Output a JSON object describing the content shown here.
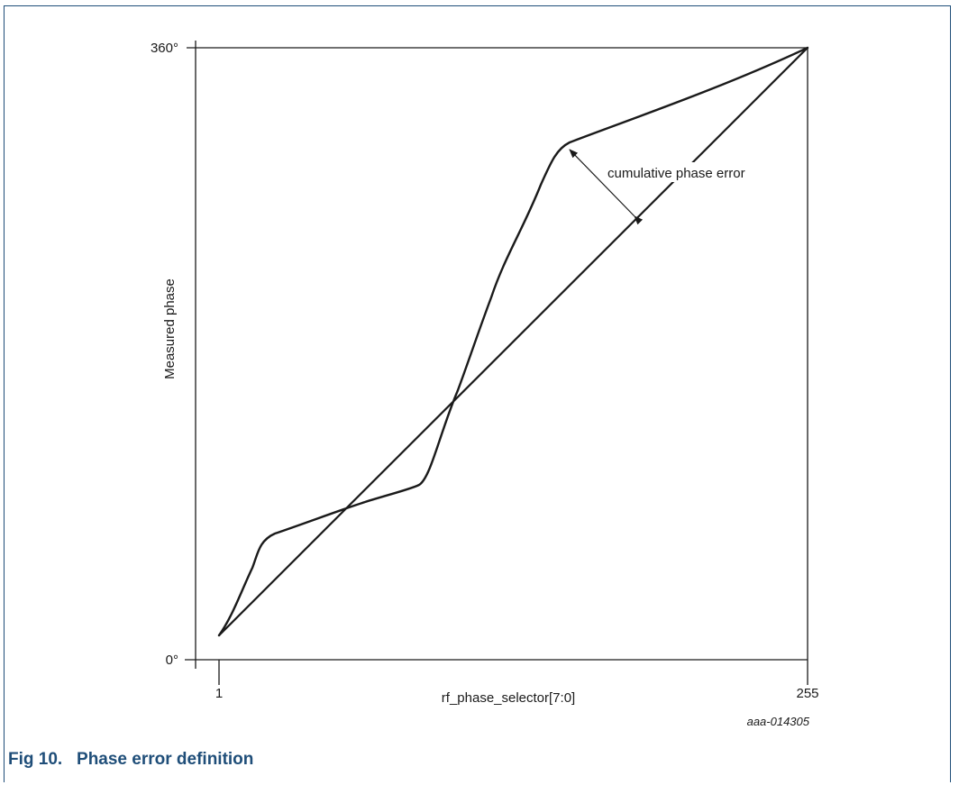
{
  "figure": {
    "caption": "Fig 10.   Phase error definition",
    "reference_id": "aaa-014305"
  },
  "axes": {
    "y_label": "Measured phase",
    "y_tick_top": "360°",
    "y_tick_bottom": "0°",
    "x_label": "rf_phase_selector[7:0]",
    "x_tick_left": "1",
    "x_tick_right": "255"
  },
  "annotation": {
    "text": "cumulative phase error"
  }
}
